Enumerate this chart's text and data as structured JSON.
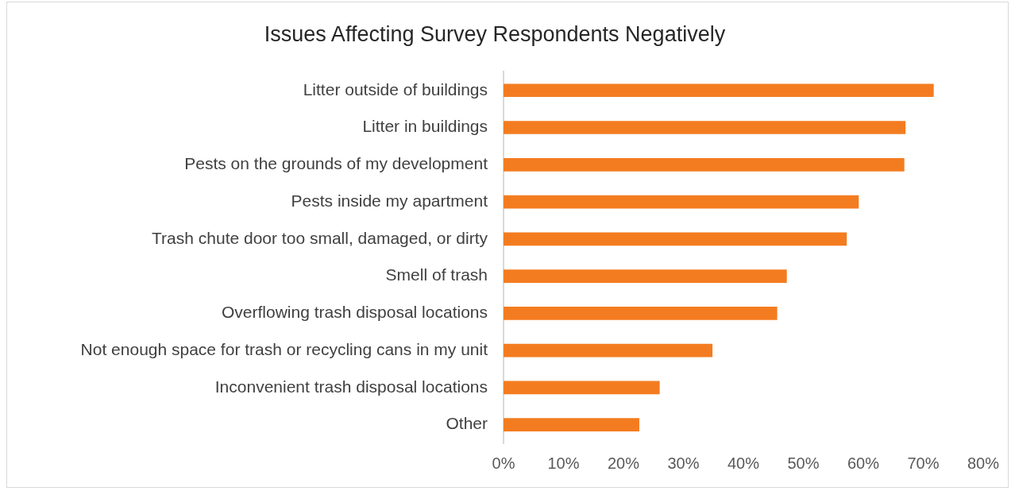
{
  "chart_data": {
    "type": "bar",
    "orientation": "horizontal",
    "title": "Issues Affecting Survey Respondents Negatively",
    "categories": [
      "Litter outside of buildings",
      "Litter in buildings",
      "Pests on the grounds of my development",
      "Pests inside my apartment",
      "Trash chute door too small, damaged, or dirty",
      "Smell of trash",
      "Overflowing trash disposal locations",
      "Not enough space for trash or recycling cans in my unit",
      "Inconvenient trash disposal locations",
      "Other"
    ],
    "values": [
      71.7,
      67,
      66.8,
      59.2,
      57.2,
      47.2,
      45.6,
      34.8,
      26,
      22.6
    ],
    "color": "#f47c20",
    "xlim": [
      0,
      80
    ],
    "xticks": [
      {
        "value": 0,
        "label": "0%"
      },
      {
        "value": 10,
        "label": "10%"
      },
      {
        "value": 20,
        "label": "20%"
      },
      {
        "value": 30,
        "label": "30%"
      },
      {
        "value": 40,
        "label": "40%"
      },
      {
        "value": 50,
        "label": "50%"
      },
      {
        "value": 60,
        "label": "60%"
      },
      {
        "value": 70,
        "label": "70%"
      },
      {
        "value": 80,
        "label": "80%"
      }
    ],
    "grid": false,
    "legend": false
  }
}
